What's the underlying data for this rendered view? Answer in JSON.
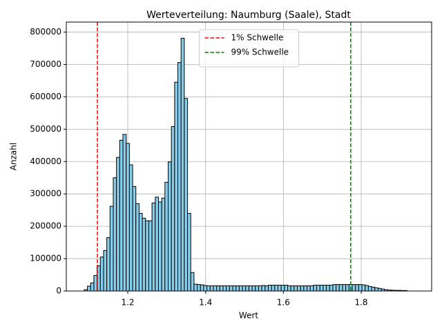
{
  "chart_data": {
    "type": "histogram",
    "title": "Werteverteilung: Naumburg (Saale), Stadt",
    "x_label": "Wert",
    "y_label": "Anzahl",
    "bins": [
      1.088,
      1.0963,
      1.1046,
      1.1129,
      1.1212,
      1.1295,
      1.1378,
      1.1461,
      1.1544,
      1.1627,
      1.171,
      1.1793,
      1.1876,
      1.1959,
      1.2042,
      1.2125,
      1.2208,
      1.2291,
      1.2374,
      1.2457,
      1.254,
      1.2623,
      1.2706,
      1.2789,
      1.2872,
      1.2955,
      1.3038,
      1.3121,
      1.3204,
      1.3287,
      1.337,
      1.3453,
      1.3536,
      1.3619,
      1.3702,
      1.3785,
      1.3868,
      1.3951,
      1.4034,
      1.4117,
      1.42,
      1.4283,
      1.4366,
      1.4449,
      1.4532,
      1.4615,
      1.4698,
      1.4781,
      1.4864,
      1.4947,
      1.503,
      1.5113,
      1.5196,
      1.5279,
      1.5362,
      1.5445,
      1.5528,
      1.5611,
      1.5694,
      1.5777,
      1.586,
      1.5943,
      1.6026,
      1.6109,
      1.6192,
      1.6275,
      1.6358,
      1.6441,
      1.6524,
      1.6607,
      1.669,
      1.6773,
      1.6856,
      1.6939,
      1.7022,
      1.7105,
      1.7188,
      1.7271,
      1.7354,
      1.7437,
      1.752,
      1.7603,
      1.7686,
      1.7769,
      1.7852,
      1.7935,
      1.8018,
      1.8101,
      1.8184,
      1.8267,
      1.835,
      1.8433,
      1.8516,
      1.8599,
      1.8682,
      1.8765,
      1.8848,
      1.8931,
      1.9014,
      1.9097,
      1.918
    ],
    "values": [
      4000,
      15000,
      25000,
      48000,
      78000,
      105000,
      125000,
      165000,
      262000,
      350000,
      413000,
      466000,
      484000,
      456000,
      390000,
      323000,
      270000,
      240000,
      225000,
      217000,
      217000,
      272000,
      290000,
      275000,
      287000,
      336000,
      399000,
      508000,
      645000,
      706000,
      781000,
      595000,
      240000,
      57000,
      21000,
      20000,
      19000,
      17000,
      16000,
      16000,
      16000,
      16000,
      16000,
      16000,
      16000,
      16000,
      16000,
      16000,
      16000,
      16000,
      16000,
      16000,
      16000,
      16000,
      16000,
      17000,
      16000,
      18000,
      18000,
      18000,
      18000,
      18000,
      18000,
      16000,
      16000,
      16000,
      16000,
      16000,
      16000,
      16000,
      16000,
      18000,
      18000,
      18000,
      18000,
      18000,
      18000,
      20000,
      20000,
      20000,
      20000,
      20000,
      20000,
      20000,
      20000,
      20000,
      19000,
      17000,
      14000,
      12000,
      10000,
      8000,
      6000,
      4000,
      3000,
      2500,
      2000,
      2000,
      1500,
      1500,
      1500
    ],
    "color": "#87ceeb",
    "edgecolor": "#000000",
    "vlines": [
      {
        "name": "1% Schwelle",
        "color": "#ff0000",
        "value": 1.122
      },
      {
        "name": "99% Schwelle",
        "color": "#008000",
        "value": 1.773
      }
    ],
    "xlim": [
      1.042,
      1.981
    ],
    "xticks": [
      1.2,
      1.4,
      1.6,
      1.8
    ],
    "ylim": [
      0,
      831000
    ],
    "yticks": [
      0,
      100000,
      200000,
      300000,
      400000,
      500000,
      600000,
      700000,
      800000
    ],
    "grid": true,
    "legend": "upper center"
  }
}
